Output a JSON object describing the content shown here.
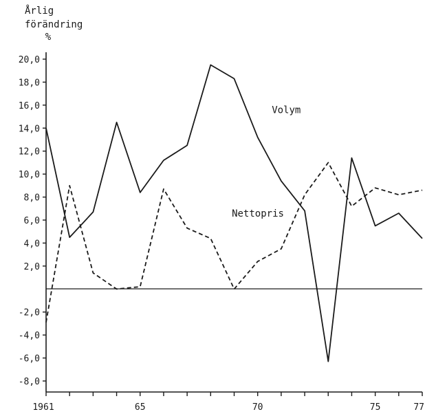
{
  "chart_data": {
    "type": "line",
    "ylabel": [
      "Årlig",
      "förändring",
      "%"
    ],
    "ylim": [
      -8.0,
      20.0
    ],
    "y_ticks": [
      "20,0",
      "18,0",
      "16,0",
      "14,0",
      "12,0",
      "10,0",
      "8,0",
      "6,0",
      "4,0",
      "2,0",
      "-2,0",
      "-4,0",
      "-6,0",
      "-8,0"
    ],
    "y_tick_values": [
      20,
      18,
      16,
      14,
      12,
      10,
      8,
      6,
      4,
      2,
      -2,
      -4,
      -6,
      -8
    ],
    "xlim": [
      1961,
      1977
    ],
    "x_ticks": [
      "1961",
      "65",
      "70",
      "75",
      "77"
    ],
    "x_tick_values": [
      1961,
      1965,
      1970,
      1975,
      1977
    ],
    "x_minor_ticks": [
      1961,
      1962,
      1963,
      1964,
      1965,
      1966,
      1967,
      1968,
      1969,
      1970,
      1971,
      1972,
      1973,
      1974,
      1975,
      1976,
      1977
    ],
    "series": [
      {
        "name": "Volym",
        "style": "solid",
        "x": [
          1961,
          1962,
          1963,
          1964,
          1965,
          1966,
          1967,
          1968,
          1969,
          1970,
          1971,
          1972,
          1973,
          1974,
          1975,
          1976,
          1977
        ],
        "values": [
          14.0,
          4.5,
          6.7,
          14.5,
          8.4,
          11.2,
          12.5,
          19.5,
          18.3,
          13.2,
          9.4,
          6.8,
          -6.3,
          11.4,
          5.5,
          6.6,
          4.4
        ]
      },
      {
        "name": "Nettopris",
        "style": "dashed",
        "x": [
          1961,
          1962,
          1963,
          1964,
          1965,
          1966,
          1967,
          1968,
          1969,
          1970,
          1971,
          1972,
          1973,
          1974,
          1975,
          1976,
          1977
        ],
        "values": [
          -2.9,
          9.0,
          1.4,
          0.0,
          0.2,
          8.7,
          5.3,
          4.4,
          0.0,
          2.4,
          3.5,
          8.2,
          11.0,
          7.2,
          8.8,
          8.2,
          8.6
        ]
      }
    ],
    "annotations": [
      {
        "text": "Volym",
        "x": 1970.6,
        "y": 15.3
      },
      {
        "text": "Nettopris",
        "x": 1968.9,
        "y": 6.3
      }
    ],
    "grid": false,
    "zero_line": true
  }
}
